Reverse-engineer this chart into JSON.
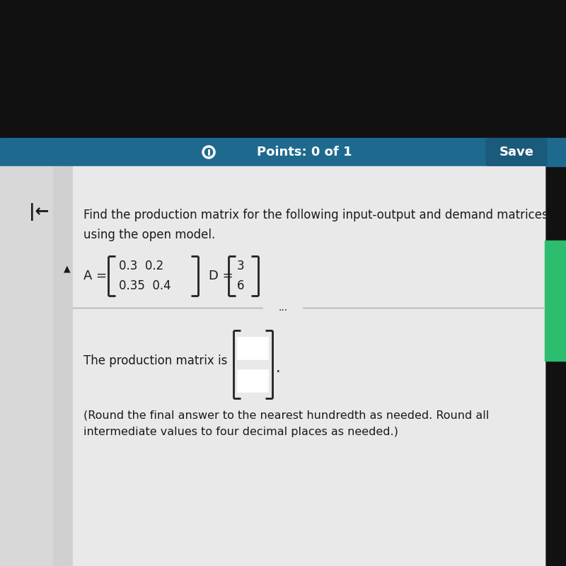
{
  "bg_black": "#111111",
  "bg_header": "#1e6a8e",
  "bg_content": "#e8e8e8",
  "bg_white": "#f5f5f5",
  "bg_left_panel": "#d8d8d8",
  "bg_left_inner": "#e5e5e5",
  "header_text": "Points: 0 of 1",
  "header_save": "Save",
  "question_text": "Find the production matrix for the following input-output and demand matrices\nusing the open model.",
  "A_label": "A =",
  "D_label": "D =",
  "A_row1": "0.3  0.2",
  "A_row2": "0.35  0.4",
  "D_row1": "3",
  "D_row2": "6",
  "divider_dots": "...",
  "answer_text": "The production matrix is",
  "note_text": "(Round the final answer to the nearest hundredth as needed. Round all\nintermediate values to four decimal places as needed.)",
  "text_color": "#1a1a1a",
  "header_color": "#1e6a8e",
  "bracket_color": "#222222",
  "answer_box_border": "#4a74c9",
  "answer_box_bg": "#ffffff",
  "green_strip": "#2dbd6e",
  "save_btn_color": "#1a5a7a"
}
